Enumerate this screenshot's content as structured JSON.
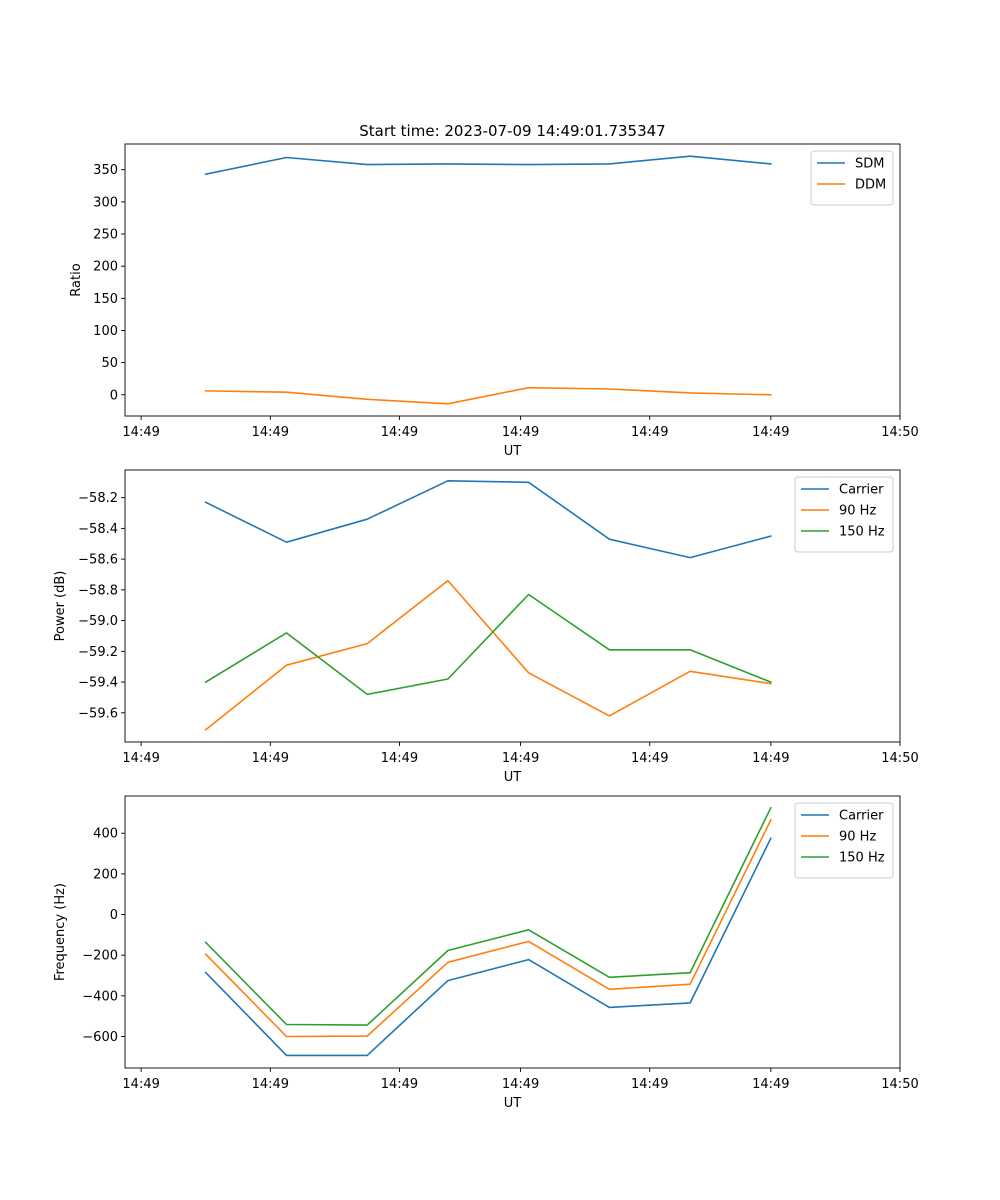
{
  "figure": {
    "title": "Start time: 2023-07-09 14:49:01.735347"
  },
  "colors": {
    "blue": "#1f77b4",
    "orange": "#ff7f0e",
    "green": "#2ca02c",
    "axis": "#000000",
    "legend_edge": "#cccccc"
  },
  "chart_data": [
    {
      "type": "line",
      "title": "Start time: 2023-07-09 14:49:01.735347",
      "xlabel": "UT",
      "ylabel": "Ratio",
      "x": [
        1,
        2,
        3,
        4,
        5,
        6,
        7,
        8
      ],
      "xlim": [
        0,
        9.6
      ],
      "xticks": [
        0.2,
        1.8,
        3.4,
        4.9,
        6.5,
        8.0,
        9.6
      ],
      "xtick_labels": [
        "14:49",
        "14:49",
        "14:49",
        "14:49",
        "14:49",
        "14:49",
        "14:50"
      ],
      "ylim": [
        -33,
        390
      ],
      "yticks": [
        0,
        50,
        100,
        150,
        200,
        250,
        300,
        350
      ],
      "ytick_labels": [
        "0",
        "50",
        "100",
        "150",
        "200",
        "250",
        "300",
        "350"
      ],
      "legend_position": "top-right",
      "series": [
        {
          "name": "SDM",
          "color": "#1f77b4",
          "values": [
            343,
            369,
            358,
            359,
            358,
            359,
            371,
            359
          ]
        },
        {
          "name": "DDM",
          "color": "#ff7f0e",
          "values": [
            6,
            4,
            -7,
            -14,
            11,
            9,
            3,
            0
          ]
        }
      ]
    },
    {
      "type": "line",
      "title": "",
      "xlabel": "UT",
      "ylabel": "Power (dB)",
      "x": [
        1,
        2,
        3,
        4,
        5,
        6,
        7,
        8
      ],
      "xlim": [
        0,
        9.6
      ],
      "xticks": [
        0.2,
        1.8,
        3.4,
        4.9,
        6.5,
        8.0,
        9.6
      ],
      "xtick_labels": [
        "14:49",
        "14:49",
        "14:49",
        "14:49",
        "14:49",
        "14:49",
        "14:50"
      ],
      "ylim": [
        -59.79,
        -58.02
      ],
      "yticks": [
        -59.6,
        -59.4,
        -59.2,
        -59.0,
        -58.8,
        -58.6,
        -58.4,
        -58.2
      ],
      "ytick_labels": [
        "−59.6",
        "−59.4",
        "−59.2",
        "−59.0",
        "−58.8",
        "−58.6",
        "−58.4",
        "−58.2"
      ],
      "legend_position": "top-right",
      "series": [
        {
          "name": "Carrier",
          "color": "#1f77b4",
          "values": [
            -58.23,
            -58.49,
            -58.34,
            -58.09,
            -58.1,
            -58.47,
            -58.59,
            -58.45
          ]
        },
        {
          "name": "90 Hz",
          "color": "#ff7f0e",
          "values": [
            -59.71,
            -59.29,
            -59.15,
            -58.74,
            -59.34,
            -59.62,
            -59.33,
            -59.41
          ]
        },
        {
          "name": "150 Hz",
          "color": "#2ca02c",
          "values": [
            -59.4,
            -59.08,
            -59.48,
            -59.38,
            -58.83,
            -59.19,
            -59.19,
            -59.4
          ]
        }
      ]
    },
    {
      "type": "line",
      "title": "",
      "xlabel": "UT",
      "ylabel": "Frequency (Hz)",
      "x": [
        1,
        2,
        3,
        4,
        5,
        6,
        7,
        8
      ],
      "xlim": [
        0,
        9.6
      ],
      "xticks": [
        0.2,
        1.8,
        3.4,
        4.9,
        6.5,
        8.0,
        9.6
      ],
      "xtick_labels": [
        "14:49",
        "14:49",
        "14:49",
        "14:49",
        "14:49",
        "14:49",
        "14:50"
      ],
      "ylim": [
        -755,
        583
      ],
      "yticks": [
        -600,
        -400,
        -200,
        0,
        200,
        400
      ],
      "ytick_labels": [
        "−600",
        "−400",
        "−200",
        "0",
        "200",
        "400"
      ],
      "legend_position": "top-right",
      "series": [
        {
          "name": "Carrier",
          "color": "#1f77b4",
          "values": [
            -285,
            -693,
            -693,
            -325,
            -222,
            -457,
            -435,
            375
          ]
        },
        {
          "name": "90 Hz",
          "color": "#ff7f0e",
          "values": [
            -195,
            -600,
            -598,
            -235,
            -132,
            -368,
            -343,
            465
          ]
        },
        {
          "name": "150 Hz",
          "color": "#2ca02c",
          "values": [
            -137,
            -541,
            -544,
            -177,
            -75,
            -309,
            -286,
            525
          ]
        }
      ]
    }
  ]
}
